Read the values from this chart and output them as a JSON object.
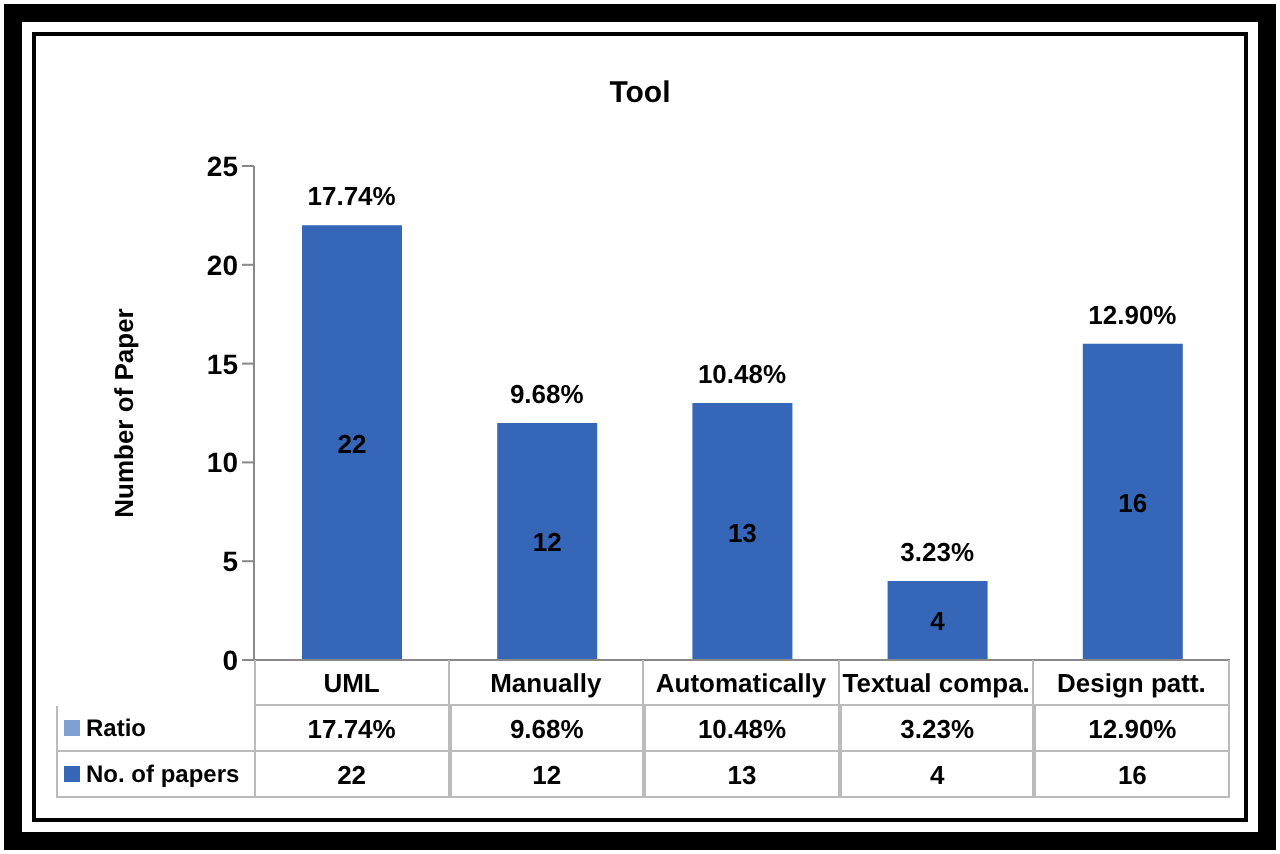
{
  "chart_data": {
    "type": "bar",
    "title": "Tool",
    "ylabel": "Number of Paper",
    "categories": [
      "UML",
      "Manually",
      "Automatically",
      "Textual compa.",
      "Design patt."
    ],
    "series": [
      {
        "name": "No. of papers",
        "color": "#3566b8",
        "values": [
          22,
          12,
          13,
          4,
          16
        ],
        "value_labels": [
          "22",
          "12",
          "13",
          "4",
          "16"
        ]
      }
    ],
    "annotations": [
      "Ratio",
      {
        "text": "17.74%",
        "x": "UML",
        "y": 22
      },
      {
        "text": "9.68%",
        "x": "Manually",
        "y": 12
      },
      {
        "text": "10.48%",
        "x": "Automatically",
        "y": 13
      },
      {
        "text": "3.23%",
        "x": "Textual compa.",
        "y": 4
      },
      {
        "text": "12.90%",
        "x": "Design patt.",
        "y": 16
      }
    ],
    "ylim": [
      0,
      25
    ],
    "yticks": [
      0,
      5,
      10,
      15,
      20,
      25
    ],
    "legend": "bottom left"
  }
}
